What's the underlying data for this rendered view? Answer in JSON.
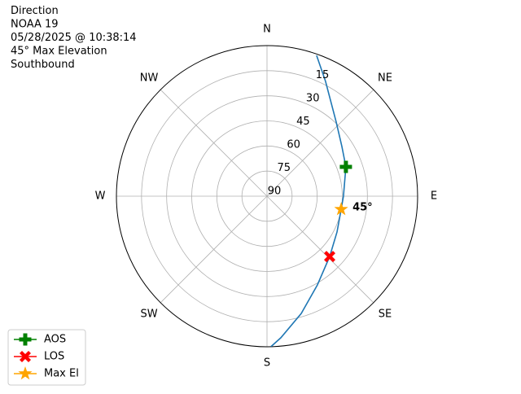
{
  "chart_data": {
    "type": "polar",
    "title_lines": [
      "Direction",
      "NOAA 19",
      "05/28/2025 @ 10:38:14",
      "45° Max Elevation",
      "Southbound"
    ],
    "xticks": [
      {
        "value": 0,
        "label": "N"
      },
      {
        "value": 45,
        "label": "NE"
      },
      {
        "value": 90,
        "label": "E"
      },
      {
        "value": 135,
        "label": "SE"
      },
      {
        "value": 180,
        "label": "S"
      },
      {
        "value": 225,
        "label": "SW"
      },
      {
        "value": 270,
        "label": "W"
      },
      {
        "value": 315,
        "label": "NW"
      }
    ],
    "rlim": [
      90,
      0
    ],
    "rticks": [
      90,
      75,
      60,
      45,
      30,
      15
    ],
    "grid": true,
    "legend": "lower left",
    "annotation": "45°",
    "series": [
      {
        "color": "#1f77b4",
        "theta": [
          19.4,
          27.0,
          43.0,
          56.5,
          69.6,
          90,
          100,
          117.1,
          133.9,
          150.4,
          163.7,
          174.4,
          178.5
        ],
        "values": [
          0.8,
          13.0,
          29.4,
          36.3,
          39.7,
          44.3,
          45,
          43.0,
          38.0,
          29.0,
          17.0,
          5.0,
          0
        ]
      },
      {
        "name": "AOS",
        "color": "green",
        "marker": "plus",
        "theta": [
          69.6
        ],
        "values": [
          39.7
        ]
      },
      {
        "name": "LOS",
        "color": "red",
        "marker": "x",
        "theta": [
          133.9
        ],
        "values": [
          38.0
        ]
      },
      {
        "name": "Max El",
        "color": "orange",
        "marker": "star",
        "theta": [
          100
        ],
        "values": [
          45
        ]
      }
    ]
  }
}
